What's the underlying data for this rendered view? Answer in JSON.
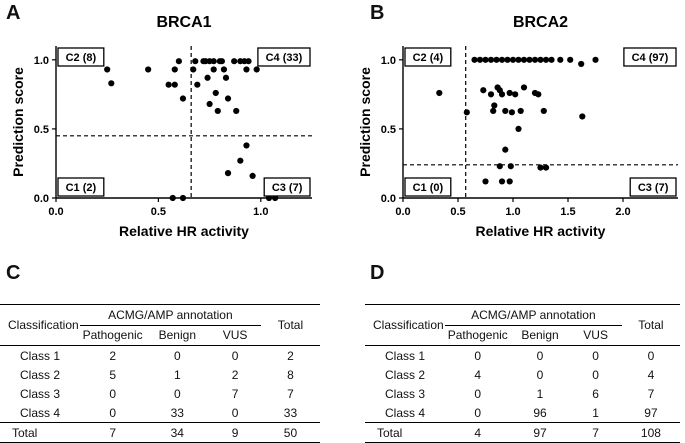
{
  "panels": {
    "a": "A",
    "b": "B",
    "c": "C",
    "d": "D"
  },
  "chart_data": [
    {
      "type": "scatter",
      "title": "BRCA1",
      "xlabel": "Relative HR activity",
      "ylabel": "Prediction score",
      "xlim": [
        0,
        1.25
      ],
      "ylim": [
        0,
        1.1
      ],
      "xticks": [
        "0.0",
        "0.5",
        "1.0"
      ],
      "xtick_values": [
        0,
        0.5,
        1.0
      ],
      "yticks": [
        "0.0",
        "0.5",
        "1.0"
      ],
      "ytick_values": [
        0,
        0.5,
        1.0
      ],
      "x_threshold": 0.66,
      "y_threshold": 0.45,
      "quadrant_labels": {
        "top_left": "C2 (8)",
        "top_right": "C4 (33)",
        "bottom_left": "C1 (2)",
        "bottom_right": "C3 (7)"
      },
      "points": [
        [
          0.25,
          0.93
        ],
        [
          0.27,
          0.83
        ],
        [
          0.45,
          0.93
        ],
        [
          0.55,
          0.82
        ],
        [
          0.58,
          0.82
        ],
        [
          0.58,
          0.93
        ],
        [
          0.6,
          0.99
        ],
        [
          0.62,
          0.72
        ],
        [
          0.67,
          0.93
        ],
        [
          0.68,
          0.99
        ],
        [
          0.69,
          0.82
        ],
        [
          0.72,
          0.99
        ],
        [
          0.73,
          0.99
        ],
        [
          0.74,
          0.87
        ],
        [
          0.75,
          0.68
        ],
        [
          0.75,
          0.99
        ],
        [
          0.77,
          0.93
        ],
        [
          0.77,
          0.99
        ],
        [
          0.78,
          0.76
        ],
        [
          0.79,
          0.63
        ],
        [
          0.8,
          0.99
        ],
        [
          0.81,
          0.99
        ],
        [
          0.82,
          0.93
        ],
        [
          0.83,
          0.87
        ],
        [
          0.84,
          0.72
        ],
        [
          0.87,
          0.99
        ],
        [
          0.9,
          0.99
        ],
        [
          0.92,
          0.99
        ],
        [
          0.94,
          0.99
        ],
        [
          0.98,
          0.93
        ],
        [
          1.0,
          0.99
        ],
        [
          1.02,
          0.99
        ],
        [
          1.11,
          0.99
        ],
        [
          1.19,
          0.98
        ],
        [
          0.88,
          0.63
        ],
        [
          0.93,
          0.93
        ],
        [
          0.93,
          0.38
        ],
        [
          0.84,
          0.18
        ],
        [
          0.96,
          0.16
        ],
        [
          0.9,
          0.27
        ],
        [
          0.57,
          0.0
        ],
        [
          0.62,
          0.0
        ],
        [
          1.04,
          0.0
        ],
        [
          1.07,
          0.0
        ]
      ]
    },
    {
      "type": "scatter",
      "title": "BRCA2",
      "xlabel": "Relative HR activity",
      "ylabel": "Prediction score",
      "xlim": [
        0,
        2.5
      ],
      "ylim": [
        0,
        1.1
      ],
      "xticks": [
        "0.0",
        "0.5",
        "1.0",
        "1.5",
        "2.0"
      ],
      "xtick_values": [
        0,
        0.5,
        1.0,
        1.5,
        2.0
      ],
      "yticks": [
        "0.0",
        "0.5",
        "1.0"
      ],
      "ytick_values": [
        0,
        0.5,
        1.0
      ],
      "x_threshold": 0.57,
      "y_threshold": 0.24,
      "quadrant_labels": {
        "top_left": "C2 (4)",
        "top_right": "C4 (97)",
        "bottom_left": "C1 (0)",
        "bottom_right": "C3 (7)"
      },
      "points": [
        [
          0.13,
          1.0
        ],
        [
          0.3,
          1.0
        ],
        [
          0.36,
          1.0
        ],
        [
          0.33,
          0.76
        ],
        [
          0.58,
          0.62
        ],
        [
          0.65,
          1.0
        ],
        [
          0.7,
          1.0
        ],
        [
          0.75,
          1.0
        ],
        [
          0.8,
          1.0
        ],
        [
          0.85,
          1.0
        ],
        [
          0.9,
          1.0
        ],
        [
          0.95,
          1.0
        ],
        [
          1.0,
          1.0
        ],
        [
          1.05,
          1.0
        ],
        [
          1.1,
          1.0
        ],
        [
          1.15,
          1.0
        ],
        [
          1.2,
          1.0
        ],
        [
          1.25,
          1.0
        ],
        [
          1.3,
          1.0
        ],
        [
          1.35,
          1.0
        ],
        [
          0.73,
          0.78
        ],
        [
          0.8,
          0.75
        ],
        [
          0.82,
          0.63
        ],
        [
          0.86,
          0.8
        ],
        [
          0.9,
          0.75
        ],
        [
          0.93,
          0.63
        ],
        [
          0.97,
          0.76
        ],
        [
          0.99,
          0.62
        ],
        [
          1.02,
          0.75
        ],
        [
          1.05,
          0.5
        ],
        [
          1.07,
          0.63
        ],
        [
          1.1,
          0.8
        ],
        [
          1.2,
          0.76
        ],
        [
          1.23,
          0.75
        ],
        [
          1.28,
          0.63
        ],
        [
          1.43,
          1.0
        ],
        [
          1.52,
          1.0
        ],
        [
          1.62,
          0.97
        ],
        [
          1.75,
          1.0
        ],
        [
          2.08,
          1.0
        ],
        [
          1.63,
          0.59
        ],
        [
          0.83,
          0.67
        ],
        [
          0.88,
          0.78
        ],
        [
          0.93,
          0.35
        ],
        [
          0.88,
          0.23
        ],
        [
          0.98,
          0.23
        ],
        [
          1.25,
          0.22
        ],
        [
          1.3,
          0.22
        ],
        [
          0.75,
          0.12
        ],
        [
          0.9,
          0.12
        ],
        [
          0.97,
          0.12
        ]
      ]
    }
  ],
  "tables": {
    "c": {
      "col_header": "Classification",
      "group_header": "ACMG/AMP  annotation",
      "sub_headers": [
        "Pathogenic",
        "Benign",
        "VUS"
      ],
      "total_header": "Total",
      "rows": [
        {
          "label": "Class 1",
          "values": [
            "2",
            "0",
            "0",
            "2"
          ]
        },
        {
          "label": "Class 2",
          "values": [
            "5",
            "1",
            "2",
            "8"
          ]
        },
        {
          "label": "Class 3",
          "values": [
            "0",
            "0",
            "7",
            "7"
          ]
        },
        {
          "label": "Class 4",
          "values": [
            "0",
            "33",
            "0",
            "33"
          ]
        }
      ],
      "total_row": {
        "label": "Total",
        "values": [
          "7",
          "34",
          "9",
          "50"
        ]
      }
    },
    "d": {
      "col_header": "Classification",
      "group_header": "ACMG/AMP  annotation",
      "sub_headers": [
        "Pathogenic",
        "Benign",
        "VUS"
      ],
      "total_header": "Total",
      "rows": [
        {
          "label": "Class 1",
          "values": [
            "0",
            "0",
            "0",
            "0"
          ]
        },
        {
          "label": "Class 2",
          "values": [
            "4",
            "0",
            "0",
            "4"
          ]
        },
        {
          "label": "Class 3",
          "values": [
            "0",
            "1",
            "6",
            "7"
          ]
        },
        {
          "label": "Class 4",
          "values": [
            "0",
            "96",
            "1",
            "97"
          ]
        }
      ],
      "total_row": {
        "label": "Total",
        "values": [
          "4",
          "97",
          "7",
          "108"
        ]
      }
    }
  }
}
